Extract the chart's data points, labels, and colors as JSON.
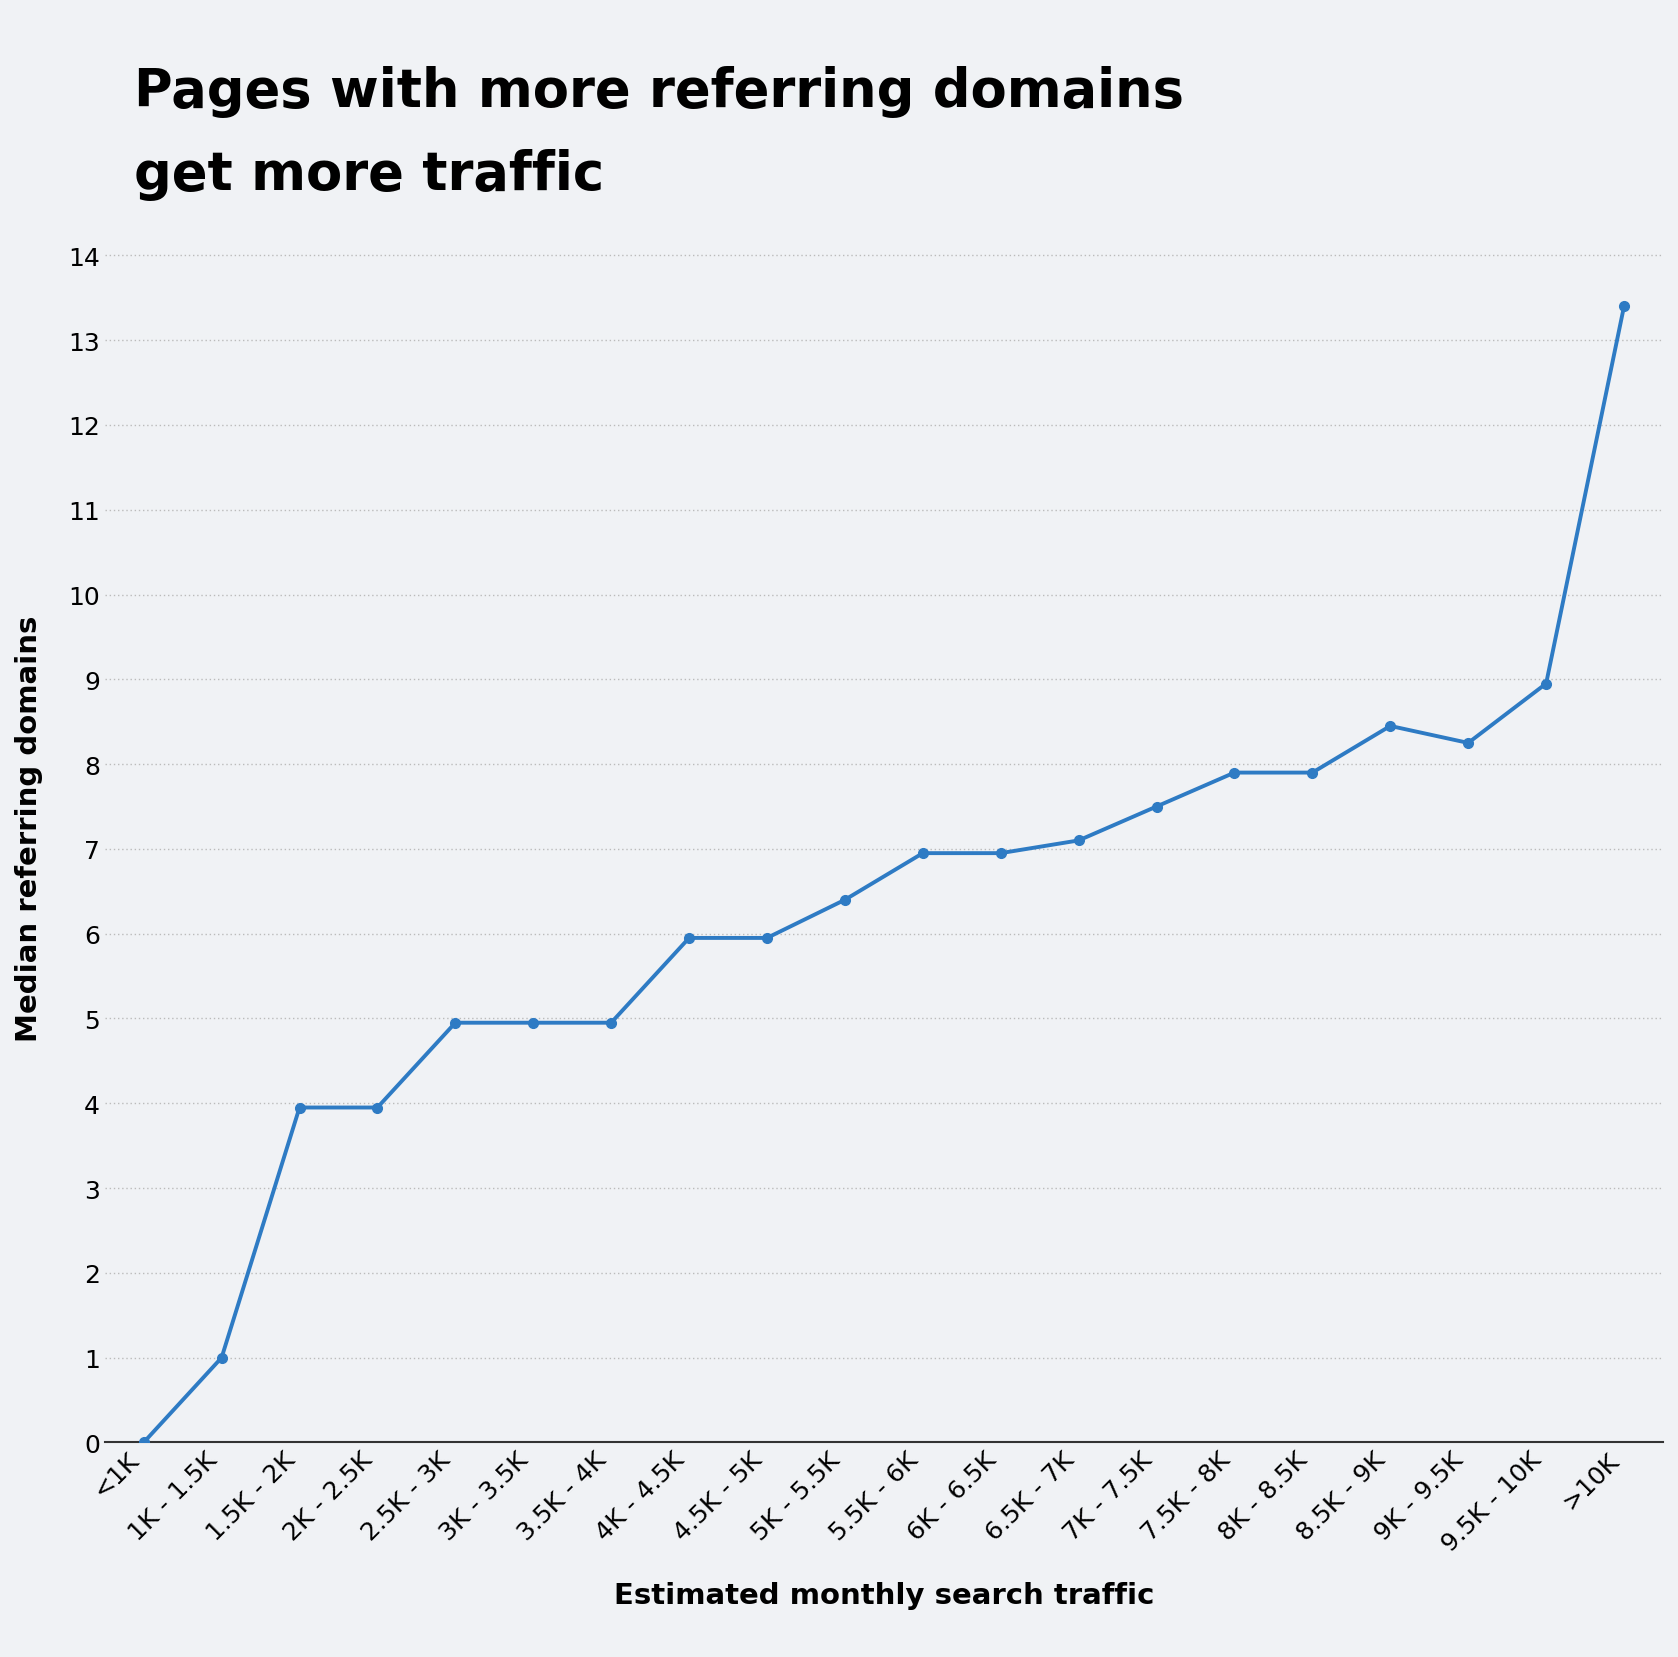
{
  "title_line1": "Pages with more referring domains",
  "title_line2": "get more traffic",
  "xlabel": "Estimated monthly search traffic",
  "ylabel": "Median referring domains",
  "background_color": "#f0f2f5",
  "line_color": "#2e7bc4",
  "categories": [
    "<1K",
    "1K - 1.5K",
    "1.5K - 2K",
    "2K - 2.5K",
    "2.5K - 3K",
    "3K - 3.5K",
    "3.5K - 4K",
    "4K - 4.5K",
    "4.5K - 5K",
    "5K - 5.5K",
    "5.5K - 6K",
    "6K - 6.5K",
    "6.5K - 7K",
    "7K - 7.5K",
    "7.5K - 8K",
    "8K - 8.5K",
    "8.5K - 9K",
    "9K - 9.5K",
    "9.5K - 10K",
    ">10K"
  ],
  "values": [
    0.0,
    1.0,
    3.95,
    3.95,
    4.95,
    4.95,
    4.95,
    5.95,
    5.95,
    6.4,
    6.95,
    6.95,
    7.1,
    7.5,
    7.9,
    7.9,
    8.45,
    8.25,
    8.95,
    13.4
  ],
  "ylim": [
    0,
    14.5
  ],
  "yticks": [
    0,
    1,
    2,
    3,
    4,
    5,
    6,
    7,
    8,
    9,
    10,
    11,
    12,
    13,
    14
  ],
  "title_fontsize": 38,
  "axis_label_fontsize": 21,
  "tick_fontsize": 18,
  "grid_color": "#bbbbbb",
  "line_width": 2.8,
  "marker_size": 7
}
